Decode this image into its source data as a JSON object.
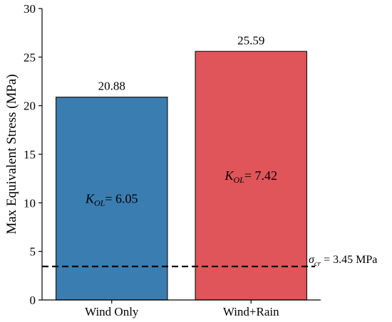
{
  "chart_data": {
    "type": "bar",
    "categories": [
      "Wind Only",
      "Wind+Rain"
    ],
    "values": [
      20.88,
      25.59
    ],
    "value_labels": [
      "20.88",
      "25.59"
    ],
    "bar_colors": [
      "#3a7db1",
      "#e05559"
    ],
    "bar_edge_color": "#1a1a1a",
    "title": "",
    "xlabel": "",
    "ylabel": "Max Equivalent Stress (MPa)",
    "ylim": [
      0,
      30
    ],
    "yticks": [
      0,
      5,
      10,
      15,
      20,
      25,
      30
    ],
    "grid": false,
    "bar_annotations": [
      {
        "symbol": "K",
        "subscript": "OL",
        "value": "= 6.05"
      },
      {
        "symbol": "K",
        "subscript": "OL",
        "value": "= 7.42"
      }
    ],
    "threshold_line": {
      "value": 3.45,
      "style": "dashed",
      "color": "#000000",
      "symbol": "σ",
      "subscript": "cr",
      "text": " = 3.45 MPa"
    }
  }
}
